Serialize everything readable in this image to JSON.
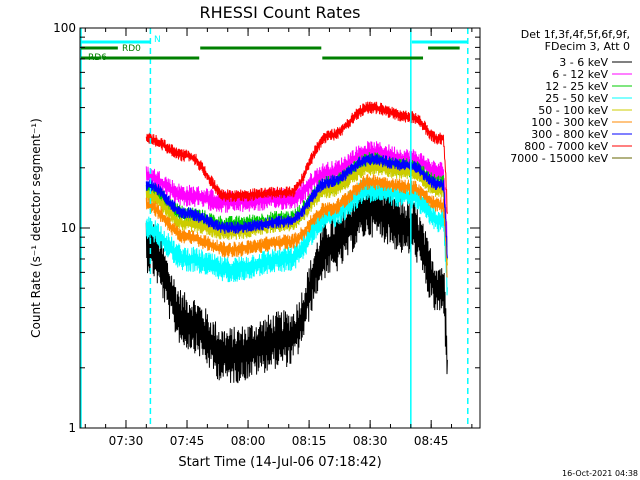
{
  "chart_data": {
    "type": "line",
    "title": "RHESSI Count Rates",
    "xlabel": "Start Time (14-Jul-06 07:18:42)",
    "ylabel": "Count Rate (s⁻¹ detector segment⁻¹)",
    "x_ticks": [
      "07:30",
      "07:45",
      "08:00",
      "08:15",
      "08:30",
      "08:45"
    ],
    "y_ticks": [
      "1",
      "10",
      "100"
    ],
    "y_scale": "log",
    "ylim": [
      1,
      100
    ],
    "xlim": [
      "07:18:42",
      "08:57:00"
    ],
    "data_span": [
      "07:35:00",
      "08:49:00"
    ],
    "legend_header": [
      "Det 1f,3f,4f,5f,6f,9f,",
      "FDecim 3, Att 0"
    ],
    "legend_position": "right",
    "series": [
      {
        "name": "3 - 6 keV",
        "color": "#000000",
        "level": [
          8.3,
          3.4,
          2.3,
          2.8,
          8,
          12.5,
          10,
          5
        ],
        "noise": 0.09
      },
      {
        "name": "6 - 12 keV",
        "color": "#ff00ff",
        "level": [
          18,
          14.5,
          13.5,
          14,
          19,
          24,
          22,
          19
        ],
        "noise": 0.035
      },
      {
        "name": "12 - 25 keV",
        "color": "#00cc00",
        "level": [
          15.5,
          11.5,
          10.3,
          11,
          16.5,
          21.5,
          20,
          16.5
        ],
        "noise": 0.03
      },
      {
        "name": "25 - 50 keV",
        "color": "#00ffff",
        "level": [
          10,
          7,
          6.2,
          7,
          11.5,
          15.5,
          14.5,
          11
        ],
        "noise": 0.04
      },
      {
        "name": "50 - 100 keV",
        "color": "#cccc00",
        "level": [
          14.5,
          10.5,
          9.5,
          10.5,
          15.5,
          20,
          19,
          15.5
        ],
        "noise": 0.025
      },
      {
        "name": "100 - 300 keV",
        "color": "#ff8800",
        "level": [
          13,
          9,
          7.8,
          8.5,
          12.5,
          17,
          16,
          13
        ],
        "noise": 0.025
      },
      {
        "name": "300 - 800 keV",
        "color": "#0000ff",
        "level": [
          16.5,
          11.8,
          10,
          10.8,
          17,
          22,
          20.5,
          16.5
        ],
        "noise": 0.02
      },
      {
        "name": "800 - 7000 keV",
        "color": "#ff0000",
        "level": [
          28,
          23,
          14.5,
          15,
          29,
          40,
          36,
          28
        ],
        "noise": 0.02
      },
      {
        "name": "7000 - 15000 keV",
        "color": "#666600",
        "level": [],
        "noise": 0
      }
    ],
    "level_times": [
      "07:35",
      "07:45",
      "07:55",
      "08:10",
      "08:20",
      "08:30",
      "08:40",
      "08:47"
    ],
    "annotations": [
      {
        "label": "N",
        "color": "#00ffff",
        "segments": [
          [
            "07:18:42",
            "07:36:00"
          ],
          [
            "08:40:00",
            "08:54:00"
          ]
        ],
        "row": "top"
      },
      {
        "label": "RD0",
        "color": "#008000",
        "segments": [
          [
            "07:18:42",
            "07:28:00"
          ],
          [
            "07:48:00",
            "08:18:00"
          ],
          [
            "08:44:00",
            "08:52:00"
          ]
        ],
        "row": "middle"
      },
      {
        "label": "RD6",
        "color": "#008000",
        "segments": [
          [
            "07:18:42",
            "07:24:00"
          ],
          [
            "07:24:00",
            "07:48:00"
          ],
          [
            "08:18:00",
            "08:43:00"
          ]
        ],
        "row": "bottom"
      }
    ],
    "vertical_lines": [
      {
        "time": "07:18:42",
        "color": "#00ffff",
        "style": "solid"
      },
      {
        "time": "07:36:00",
        "color": "#00ffff",
        "style": "dashed"
      },
      {
        "time": "08:40:00",
        "color": "#00ffff",
        "style": "solid"
      },
      {
        "time": "08:54:00",
        "color": "#00ffff",
        "style": "dashed"
      }
    ],
    "grid": false
  },
  "footer_timestamp": "16-Oct-2021 04:38"
}
